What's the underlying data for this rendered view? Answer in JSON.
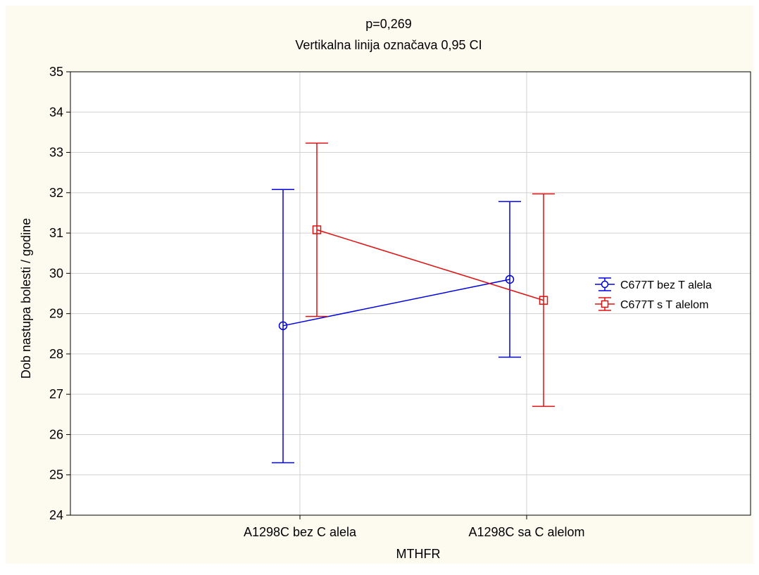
{
  "chart_data": {
    "type": "line",
    "title": "p=0,269",
    "subtitle": "Vertikalna linija označava 0,95 CI",
    "xlabel": "MTHFR",
    "ylabel": "Dob nastupa bolesti / godine",
    "categories": [
      "A1298C bez C alela",
      "A1298C sa C alelom"
    ],
    "ylim": [
      24,
      35
    ],
    "yticks": [
      24,
      25,
      26,
      27,
      28,
      29,
      30,
      31,
      32,
      33,
      34,
      35
    ],
    "grid": true,
    "legend_position": "right",
    "series": [
      {
        "name": "C677T bez T alela",
        "color": "#0000e0",
        "marker": "circle",
        "values": [
          28.7,
          29.85
        ],
        "ci_low": [
          25.3,
          27.92
        ],
        "ci_high": [
          32.08,
          31.78
        ]
      },
      {
        "name": "C677T s T alelom",
        "color": "#e01010",
        "marker": "square",
        "values": [
          31.08,
          29.33
        ],
        "ci_low": [
          28.93,
          26.7
        ],
        "ci_high": [
          33.23,
          31.97
        ]
      }
    ]
  }
}
